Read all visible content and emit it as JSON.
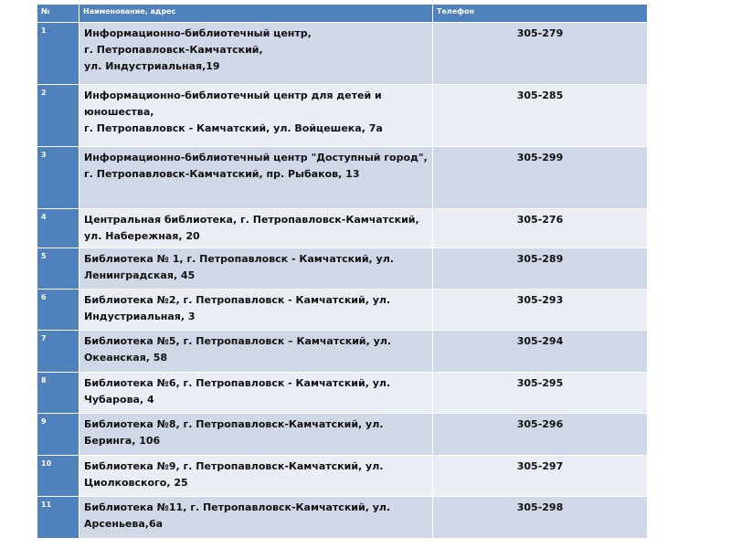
{
  "colors": {
    "header": "#4f81bd",
    "row_dark": "#d0d8e8",
    "row_light": "#e9edf4"
  },
  "table": {
    "headers": [
      "№",
      "Наименование,  адрес",
      "Телефон"
    ],
    "rows": [
      {
        "num": "1",
        "name": "Информационно-библиотечный центр,\nг. Петропавловск-Камчатский,\nул. Индустриальная,19",
        "phone": "305-279"
      },
      {
        "num": "2",
        "name": "Информационно-библиотечный центр для детей и юношества,\nг. Петропавловск - Камчатский, ул. Войцешека, 7а",
        "phone": "305-285"
      },
      {
        "num": "3",
        "name": "Информационно-библиотечный центр \"Доступный город\", г. Петропавловск-Камчатский, пр. Рыбаков, 13",
        "phone": "305-299"
      },
      {
        "num": "4",
        "name": "Центральная библиотека, г. Петропавловск-Камчатский, ул. Набережная, 20",
        "phone": "305-276"
      },
      {
        "num": "5",
        "name": "Библиотека № 1, г. Петропавловск - Камчатский, ул. Ленинградская, 45",
        "phone": "305-289"
      },
      {
        "num": "6",
        "name": "Библиотека  №2, г. Петропавловск - Камчатский, ул. Индустриальная, 3",
        "phone": "305-293"
      },
      {
        "num": "7",
        "name": "Библиотека №5, г. Петропавловск – Камчатский, ул. Океанская, 58",
        "phone": "305-294"
      },
      {
        "num": "8",
        "name": "Библиотека №6, г. Петропавловск - Камчатский, ул. Чубарова, 4",
        "phone": "305-295"
      },
      {
        "num": "9",
        "name": "Библиотека №8, г. Петропавловск-Камчатский, ул. Беринга, 106",
        "phone": "305-296"
      },
      {
        "num": "10",
        "name": "Библиотека №9, г. Петропавловск-Камчатский, ул.\nЦиолковского, 25",
        "phone": "305-297"
      },
      {
        "num": "11",
        "name": "Библиотека №11, г. Петропавловск-Камчатский, ул.\nАрсеньева,6а",
        "phone": "305-298"
      }
    ]
  }
}
